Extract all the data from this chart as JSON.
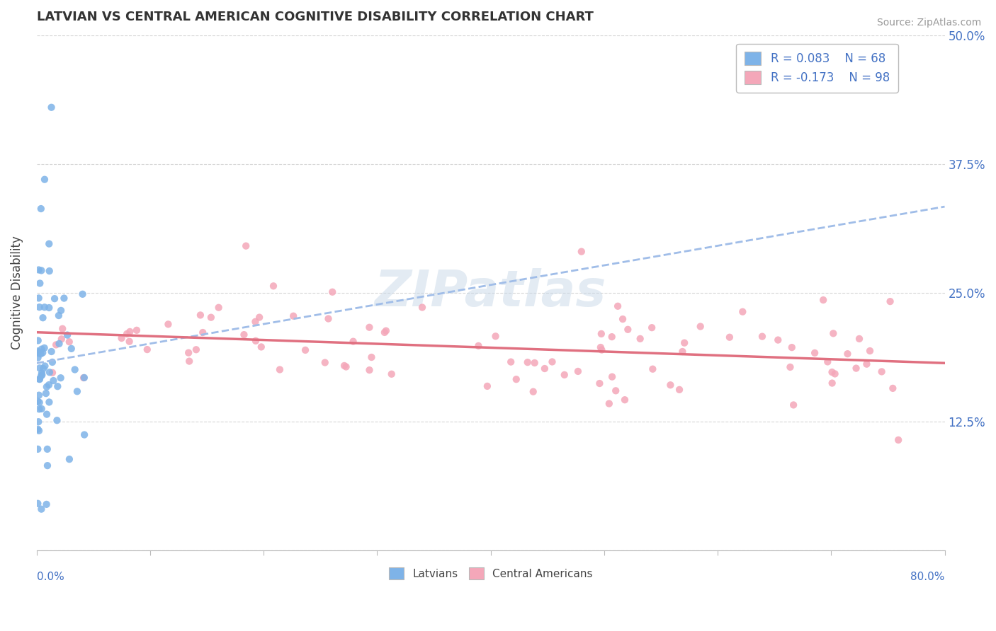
{
  "title": "LATVIAN VS CENTRAL AMERICAN COGNITIVE DISABILITY CORRELATION CHART",
  "source": "Source: ZipAtlas.com",
  "ylabel": "Cognitive Disability",
  "legend_latvian_R": "R = 0.083",
  "legend_latvian_N": "N = 68",
  "legend_central_R": "R = -0.173",
  "legend_central_N": "N = 98",
  "color_latvian": "#7EB3E8",
  "color_central": "#F4A7B9",
  "color_latvian_line": "#A0BDE8",
  "color_central_line": "#E07080",
  "xlim": [
    0.0,
    0.8
  ],
  "ylim": [
    0.0,
    0.5
  ],
  "rho_latvian": 0.083,
  "rho_central": -0.173,
  "n_latvian": 68,
  "n_central": 98,
  "yticks_right": [
    0.125,
    0.25,
    0.375,
    0.5
  ],
  "ytick_labels_right": [
    "12.5%",
    "25.0%",
    "37.5%",
    "50.0%"
  ],
  "watermark": "ZIPatlas"
}
